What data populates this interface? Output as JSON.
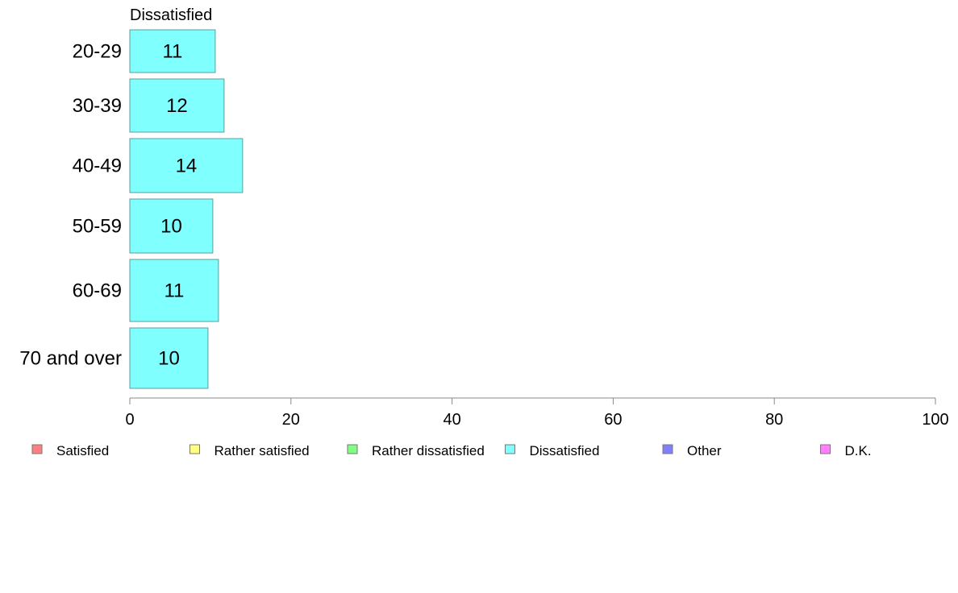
{
  "chart_data": {
    "type": "bar",
    "orientation": "horizontal",
    "title": "Dissatisfied",
    "categories": [
      "20-29",
      "30-39",
      "40-49",
      "50-59",
      "60-69",
      "70 and over"
    ],
    "series": [
      {
        "name": "Dissatisfied",
        "values": [
          11,
          12,
          14,
          10,
          11,
          10
        ],
        "color": "#80ffff"
      }
    ],
    "bar_extents": [
      10.6,
      11.7,
      14.0,
      10.3,
      11.0,
      9.7
    ],
    "xlim": [
      0,
      100
    ],
    "x_ticks": [
      0,
      20,
      40,
      60,
      80,
      100
    ],
    "grid": false,
    "legend": {
      "placement": "bottom",
      "entries": [
        {
          "label": "Satisfied",
          "color": "#ff8080"
        },
        {
          "label": "Rather satisfied",
          "color": "#ffff80"
        },
        {
          "label": "Rather dissatisfied",
          "color": "#80ff80"
        },
        {
          "label": "Dissatisfied",
          "color": "#80ffff"
        },
        {
          "label": "Other",
          "color": "#8080ff"
        },
        {
          "label": "D.K.",
          "color": "#ff80ff"
        }
      ]
    }
  }
}
